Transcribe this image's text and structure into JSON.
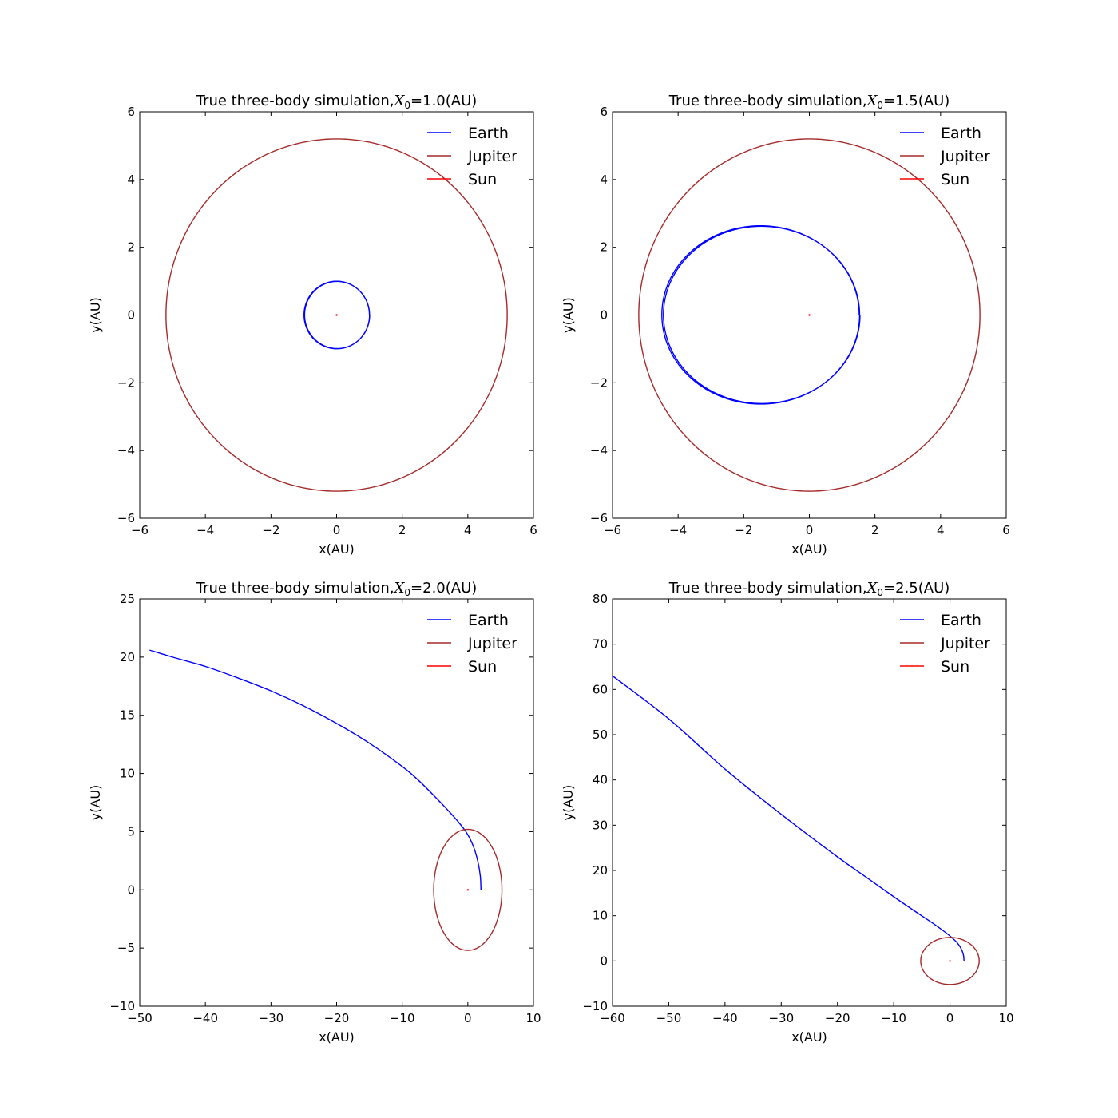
{
  "chart_data": [
    {
      "type": "line",
      "title": {
        "prefix": "True three-body simulation,",
        "var": "X",
        "sub": "0",
        "suffix": "=1.0(AU)"
      },
      "xlabel": "x(AU)",
      "ylabel": "y(AU)",
      "xlim": [
        -6,
        6
      ],
      "ylim": [
        -6,
        6
      ],
      "xticks": [
        -6,
        -4,
        -2,
        0,
        2,
        4,
        6
      ],
      "yticks": [
        -6,
        -4,
        -2,
        0,
        2,
        4,
        6
      ],
      "xtick_labels": [
        "−6",
        "−4",
        "−2",
        "0",
        "2",
        "4",
        "6"
      ],
      "ytick_labels": [
        "−6",
        "−4",
        "−2",
        "0",
        "2",
        "4",
        "6"
      ],
      "legend_placement": "top-right",
      "series": [
        {
          "name": "Earth",
          "color": "#0000ff",
          "shape": "ellipse",
          "cx": 0,
          "cy": 0,
          "rx": 1.0,
          "ry": 1.0,
          "loops": 2
        },
        {
          "name": "Jupiter",
          "color": "#a52a2a",
          "shape": "ellipse",
          "cx": 0,
          "cy": 0,
          "rx": 5.2,
          "ry": 5.2,
          "loops": 1
        },
        {
          "name": "Sun",
          "color": "#ff0000",
          "shape": "point",
          "x": [
            0
          ],
          "y": [
            0
          ]
        }
      ]
    },
    {
      "type": "line",
      "title": {
        "prefix": "True three-body simulation,",
        "var": "X",
        "sub": "0",
        "suffix": "=1.5(AU)"
      },
      "xlabel": "x(AU)",
      "ylabel": "y(AU)",
      "xlim": [
        -6,
        6
      ],
      "ylim": [
        -6,
        6
      ],
      "xticks": [
        -6,
        -4,
        -2,
        0,
        2,
        4,
        6
      ],
      "yticks": [
        -6,
        -4,
        -2,
        0,
        2,
        4,
        6
      ],
      "xtick_labels": [
        "−6",
        "−4",
        "−2",
        "0",
        "2",
        "4",
        "6"
      ],
      "ytick_labels": [
        "−6",
        "−4",
        "−2",
        "0",
        "2",
        "4",
        "6"
      ],
      "legend_placement": "top-right",
      "series": [
        {
          "name": "Earth",
          "color": "#0000ff",
          "shape": "ellipse",
          "cx": -1.5,
          "cy": 0,
          "rx": 3.02,
          "ry": 2.64,
          "loops": 2
        },
        {
          "name": "Jupiter",
          "color": "#a52a2a",
          "shape": "ellipse",
          "cx": 0,
          "cy": 0,
          "rx": 5.2,
          "ry": 5.2,
          "loops": 1
        },
        {
          "name": "Sun",
          "color": "#ff0000",
          "shape": "point",
          "x": [
            0
          ],
          "y": [
            0
          ]
        }
      ]
    },
    {
      "type": "line",
      "title": {
        "prefix": "True three-body simulation,",
        "var": "X",
        "sub": "0",
        "suffix": "=2.0(AU)"
      },
      "xlabel": "x(AU)",
      "ylabel": "y(AU)",
      "xlim": [
        -50,
        10
      ],
      "ylim": [
        -10,
        25
      ],
      "xticks": [
        -50,
        -40,
        -30,
        -20,
        -10,
        0,
        10
      ],
      "yticks": [
        -10,
        -5,
        0,
        5,
        10,
        15,
        20,
        25
      ],
      "xtick_labels": [
        "−50",
        "−40",
        "−30",
        "−20",
        "−10",
        "0",
        "10"
      ],
      "ytick_labels": [
        "−10",
        "−5",
        "0",
        "5",
        "10",
        "15",
        "20",
        "25"
      ],
      "legend_placement": "top-right",
      "series": [
        {
          "name": "Earth",
          "color": "#0000ff",
          "shape": "line",
          "x": [
            2.0,
            1.9,
            1.5,
            0.8,
            -0.3,
            -1.7,
            -3.3,
            -5.0,
            -7.5,
            -10.0,
            -15.0,
            -20.0,
            -25.0,
            -30.0,
            -35.0,
            -40.0,
            -45.0,
            -48.5
          ],
          "y": [
            0.0,
            1.2,
            2.5,
            3.8,
            5.0,
            6.0,
            7.0,
            8.0,
            9.4,
            10.6,
            12.6,
            14.3,
            15.8,
            17.1,
            18.2,
            19.2,
            20.0,
            20.6
          ]
        },
        {
          "name": "Jupiter",
          "color": "#a52a2a",
          "shape": "ellipse",
          "cx": 0,
          "cy": 0,
          "rx": 5.2,
          "ry": 5.2,
          "loops": 1
        },
        {
          "name": "Sun",
          "color": "#ff0000",
          "shape": "point",
          "x": [
            0
          ],
          "y": [
            0
          ]
        }
      ]
    },
    {
      "type": "line",
      "title": {
        "prefix": "True three-body simulation,",
        "var": "X",
        "sub": "0",
        "suffix": "=2.5(AU)"
      },
      "xlabel": "x(AU)",
      "ylabel": "y(AU)",
      "xlim": [
        -60,
        10
      ],
      "ylim": [
        -10,
        80
      ],
      "xticks": [
        -60,
        -50,
        -40,
        -30,
        -20,
        -10,
        0,
        10
      ],
      "yticks": [
        -10,
        0,
        10,
        20,
        30,
        40,
        50,
        60,
        70,
        80
      ],
      "xtick_labels": [
        "−60",
        "−50",
        "−40",
        "−30",
        "−20",
        "−10",
        "0",
        "10"
      ],
      "ytick_labels": [
        "−10",
        "0",
        "10",
        "20",
        "30",
        "40",
        "50",
        "60",
        "70",
        "80"
      ],
      "legend_placement": "top-right",
      "series": [
        {
          "name": "Earth",
          "color": "#0000ff",
          "shape": "line",
          "x": [
            2.5,
            2.4,
            2.0,
            1.3,
            0.3,
            -1.0,
            -3.0,
            -6.0,
            -10.0,
            -15.0,
            -20.0,
            -30.0,
            -40.0,
            -50.0,
            -60.0
          ],
          "y": [
            0.0,
            1.3,
            2.7,
            4.0,
            5.2,
            6.5,
            8.3,
            10.8,
            14.2,
            18.6,
            23.0,
            32.4,
            42.4,
            53.5,
            63.0
          ]
        },
        {
          "name": "Jupiter",
          "color": "#a52a2a",
          "shape": "ellipse",
          "cx": 0,
          "cy": 0,
          "rx": 5.2,
          "ry": 5.2,
          "loops": 1
        },
        {
          "name": "Sun",
          "color": "#ff0000",
          "shape": "point",
          "x": [
            0
          ],
          "y": [
            0
          ]
        }
      ]
    }
  ]
}
